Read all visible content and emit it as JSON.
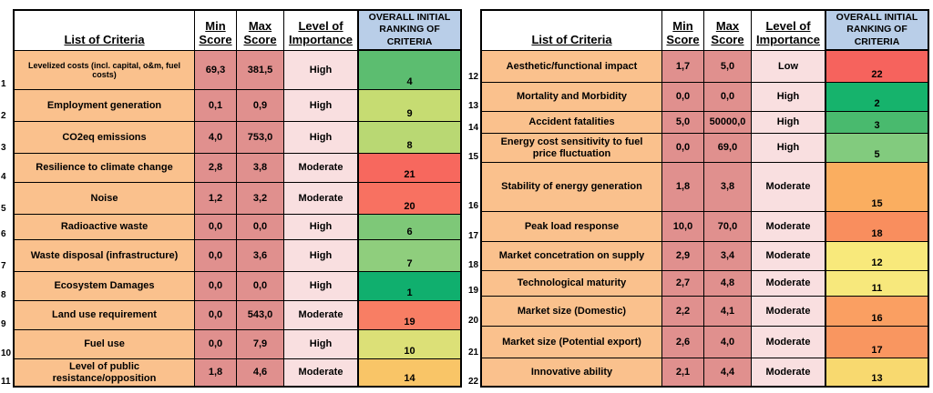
{
  "header": {
    "criteria": "List of Criteria",
    "min": "Min Score",
    "max": "Max Score",
    "importance": "Level of Importance",
    "ranking": "OVERALL INITIAL RANKING OF CRITERIA"
  },
  "colors": {
    "criteria_bg": "#FAC18D",
    "score_bg": "#E0908E",
    "importance_bg": "#F9DFE0",
    "ranking_header_bg": "#B9CEE8",
    "border": "#000000"
  },
  "tables": [
    {
      "rows": [
        {
          "num": "1",
          "criteria": "Levelized costs (incl. capital, o&m, fuel costs)",
          "min": "69,3",
          "max": "381,5",
          "importance": "High",
          "rank": "4",
          "rank_color": "#5CBD70"
        },
        {
          "num": "2",
          "criteria": "Employment generation",
          "min": "0,1",
          "max": "0,9",
          "importance": "High",
          "rank": "9",
          "rank_color": "#C6DC72"
        },
        {
          "num": "3",
          "criteria": "CO2eq emissions",
          "min": "4,0",
          "max": "753,0",
          "importance": "High",
          "rank": "8",
          "rank_color": "#B9D873"
        },
        {
          "num": "4",
          "criteria": "Resilience to climate change",
          "min": "2,8",
          "max": "3,8",
          "importance": "Moderate",
          "rank": "21",
          "rank_color": "#F7685E"
        },
        {
          "num": "5",
          "criteria": "Noise",
          "min": "1,2",
          "max": "3,2",
          "importance": "Moderate",
          "rank": "20",
          "rank_color": "#F87161"
        },
        {
          "num": "6",
          "criteria": "Radioactive waste",
          "min": "0,0",
          "max": "0,0",
          "importance": "High",
          "rank": "6",
          "rank_color": "#7EC878"
        },
        {
          "num": "7",
          "criteria": "Waste disposal (infrastructure)",
          "min": "0,0",
          "max": "3,6",
          "importance": "High",
          "rank": "7",
          "rank_color": "#8FCE7D"
        },
        {
          "num": "8",
          "criteria": "Ecosystem Damages",
          "min": "0,0",
          "max": "0,0",
          "importance": "High",
          "rank": "1",
          "rank_color": "#10AF6E"
        },
        {
          "num": "9",
          "criteria": "Land use requirement",
          "min": "0,0",
          "max": "543,0",
          "importance": "Moderate",
          "rank": "19",
          "rank_color": "#F87E64"
        },
        {
          "num": "10",
          "criteria": "Fuel use",
          "min": "0,0",
          "max": "7,9",
          "importance": "High",
          "rank": "10",
          "rank_color": "#DCE077"
        },
        {
          "num": "11",
          "criteria": "Level of public resistance/opposition",
          "min": "1,8",
          "max": "4,6",
          "importance": "Moderate",
          "rank": "14",
          "rank_color": "#F9C567"
        }
      ]
    },
    {
      "rows": [
        {
          "num": "12",
          "criteria": "Aesthetic/functional impact",
          "min": "1,7",
          "max": "5,0",
          "importance": "Low",
          "rank": "22",
          "rank_color": "#F6635D"
        },
        {
          "num": "13",
          "criteria": "Mortality and Morbidity",
          "min": "0,0",
          "max": "0,0",
          "importance": "High",
          "rank": "2",
          "rank_color": "#16B36C"
        },
        {
          "num": "14",
          "criteria": "Accident fatalities",
          "min": "5,0",
          "max": "50000,0",
          "importance": "High",
          "rank": "3",
          "rank_color": "#49BA6E"
        },
        {
          "num": "15",
          "criteria": "Energy cost sensitivity to fuel price fluctuation",
          "min": "0,0",
          "max": "69,0",
          "importance": "High",
          "rank": "5",
          "rank_color": "#82CB7E"
        },
        {
          "num": "16",
          "criteria": "Stability of energy generation",
          "min": "1,8",
          "max": "3,8",
          "importance": "Moderate",
          "rank": "15",
          "rank_color": "#FAAE60"
        },
        {
          "num": "17",
          "criteria": "Peak load response",
          "min": "10,0",
          "max": "70,0",
          "importance": "Moderate",
          "rank": "18",
          "rank_color": "#F98E5E"
        },
        {
          "num": "18",
          "criteria": "Market concetration on supply",
          "min": "2,9",
          "max": "3,4",
          "importance": "Moderate",
          "rank": "12",
          "rank_color": "#F8E97B"
        },
        {
          "num": "19",
          "criteria": "Technological maturity",
          "min": "2,7",
          "max": "4,8",
          "importance": "Moderate",
          "rank": "11",
          "rank_color": "#F7E87C"
        },
        {
          "num": "20",
          "criteria": "Market size (Domestic)",
          "min": "2,2",
          "max": "4,1",
          "importance": "Moderate",
          "rank": "16",
          "rank_color": "#FA9F62"
        },
        {
          "num": "21",
          "criteria": "Market size (Potential export)",
          "min": "2,6",
          "max": "4,0",
          "importance": "Moderate",
          "rank": "17",
          "rank_color": "#F99660"
        },
        {
          "num": "22",
          "criteria": "Innovative ability",
          "min": "2,1",
          "max": "4,4",
          "importance": "Moderate",
          "rank": "13",
          "rank_color": "#F8D96F"
        }
      ]
    }
  ]
}
